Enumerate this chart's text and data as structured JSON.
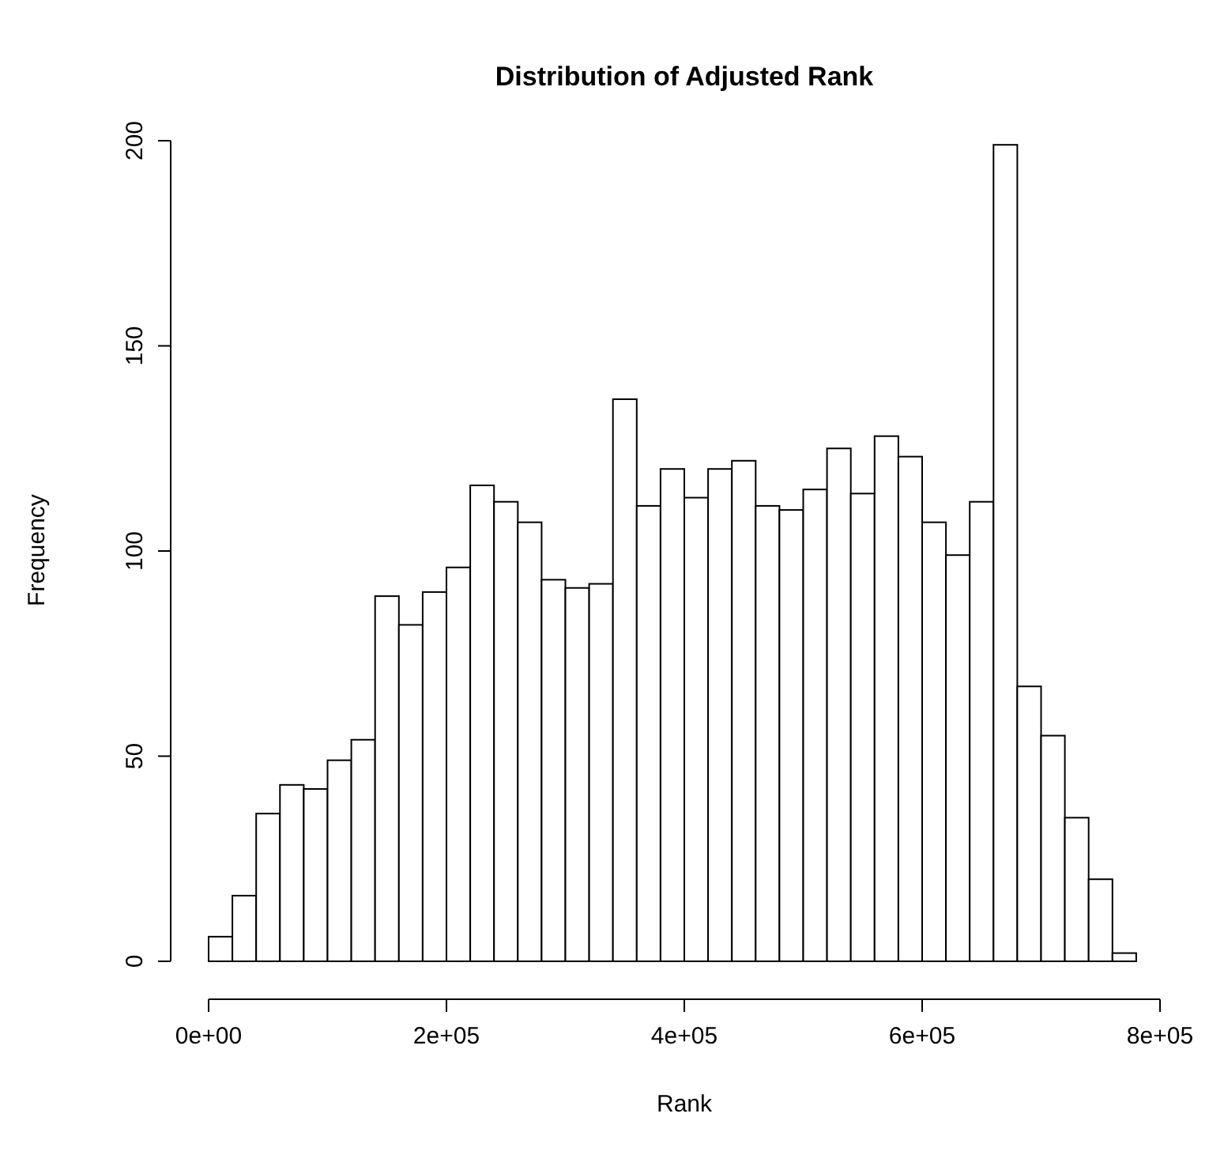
{
  "chart_data": {
    "type": "histogram",
    "title": "Distribution of Adjusted Rank",
    "xlabel": "Rank",
    "ylabel": "Frequency",
    "bins": [
      0,
      20000,
      40000,
      60000,
      80000,
      100000,
      120000,
      140000,
      160000,
      180000,
      200000,
      220000,
      240000,
      260000,
      280000,
      300000,
      320000,
      340000,
      360000,
      380000,
      400000,
      420000,
      440000,
      460000,
      480000,
      500000,
      520000,
      540000,
      560000,
      580000,
      600000,
      620000,
      640000,
      660000,
      680000,
      700000,
      720000,
      740000,
      760000,
      780000
    ],
    "values": [
      6,
      16,
      36,
      43,
      42,
      49,
      54,
      89,
      82,
      90,
      96,
      116,
      112,
      107,
      93,
      91,
      92,
      137,
      111,
      120,
      113,
      120,
      122,
      111,
      110,
      115,
      125,
      114,
      128,
      123,
      107,
      99,
      112,
      199,
      67,
      55,
      35,
      20,
      2
    ],
    "color": "#ffffff",
    "xlim": [
      0,
      800000
    ],
    "xticks": [
      {
        "value": 0,
        "label": "0e+00"
      },
      {
        "value": 200000,
        "label": "2e+05"
      },
      {
        "value": 400000,
        "label": "4e+05"
      },
      {
        "value": 600000,
        "label": "6e+05"
      },
      {
        "value": 800000,
        "label": "8e+05"
      }
    ],
    "ylim": [
      0,
      200
    ],
    "yticks": [
      0,
      50,
      100,
      150,
      200
    ],
    "grid": false
  }
}
